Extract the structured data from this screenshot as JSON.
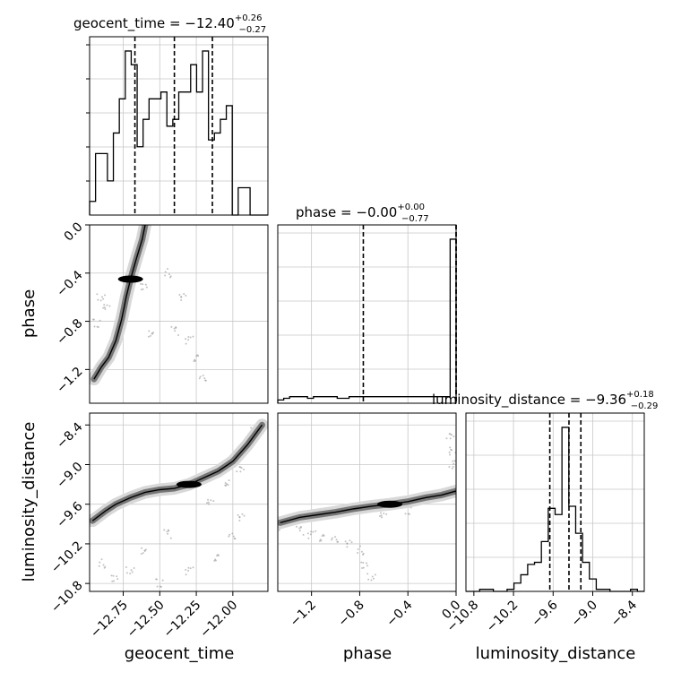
{
  "chart_data": {
    "type": "corner",
    "params": [
      "geocent_time",
      "phase",
      "luminosity_distance"
    ],
    "titles": {
      "geocent_time": {
        "name": "geocent_time",
        "median": "−12.40",
        "plus": "+0.26",
        "minus": "−0.27"
      },
      "phase": {
        "name": "phase",
        "median": "−0.00",
        "plus": "+0.00",
        "minus": "−0.77"
      },
      "luminosity_distance": {
        "name": "luminosity_distance",
        "median": "−9.36",
        "plus": "+0.18",
        "minus": "−0.29"
      }
    },
    "axis_labels": {
      "geocent_time": "geocent_time",
      "phase": "phase",
      "luminosity_distance": "luminosity_distance"
    },
    "ranges": {
      "geocent_time": [
        -12.98,
        -11.76
      ],
      "phase": [
        -1.48,
        0.0
      ],
      "luminosity_distance": [
        -10.92,
        -8.22
      ]
    },
    "ticks": {
      "geocent_time": {
        "values": [
          -12.75,
          -12.5,
          -12.25,
          -12.0
        ],
        "labels": [
          "−12.75",
          "−12.50",
          "−12.25",
          "−12.00"
        ]
      },
      "phase": {
        "values": [
          -1.2,
          -0.8,
          -0.4,
          0.0
        ],
        "labels": [
          "−1.2",
          "−0.8",
          "−0.4",
          "0.0"
        ]
      },
      "luminosity_distance": {
        "values": [
          -10.8,
          -10.2,
          -9.6,
          -9.0,
          -8.4
        ],
        "labels": [
          "−10.8",
          "−10.2",
          "−9.6",
          "−9.0",
          "−8.4"
        ]
      }
    },
    "quantiles": {
      "geocent_time": [
        -12.67,
        -12.4,
        -12.14
      ],
      "phase": [
        -0.77,
        0.0,
        0.0
      ],
      "luminosity_distance": [
        -9.65,
        -9.36,
        -9.18
      ]
    },
    "histograms": {
      "geocent_time": {
        "edges_range": [
          -12.98,
          -11.76
        ],
        "counts": [
          2,
          9,
          9,
          5,
          12,
          17,
          24,
          22,
          10,
          14,
          17,
          17,
          18,
          13,
          14,
          18,
          18,
          22,
          18,
          24,
          11,
          12,
          14,
          16,
          0,
          4,
          4,
          0,
          0,
          0
        ]
      },
      "phase": {
        "edges_range": [
          -1.48,
          0.0
        ],
        "counts": [
          2,
          3,
          4,
          4,
          4,
          3,
          4,
          4,
          4,
          4,
          3,
          3,
          4,
          4,
          4,
          4,
          4,
          4,
          4,
          4,
          4,
          4,
          4,
          4,
          4,
          4,
          4,
          4,
          4,
          100
        ]
      },
      "luminosity_distance": {
        "edges_range": [
          -10.92,
          -8.22
        ],
        "counts": [
          0,
          0,
          1,
          1,
          0,
          0,
          1,
          4,
          8,
          13,
          14,
          24,
          40,
          37,
          79,
          41,
          28,
          14,
          6,
          1,
          1,
          0,
          0,
          0,
          1,
          0
        ]
      }
    },
    "scatter_2d": {
      "phase_vs_geocent_time": {
        "ridge": [
          [
            -12.95,
            -1.28
          ],
          [
            -12.9,
            -1.18
          ],
          [
            -12.85,
            -1.1
          ],
          [
            -12.8,
            -0.96
          ],
          [
            -12.76,
            -0.78
          ],
          [
            -12.73,
            -0.6
          ],
          [
            -12.7,
            -0.45
          ],
          [
            -12.66,
            -0.28
          ],
          [
            -12.62,
            -0.12
          ],
          [
            -12.6,
            0.0
          ]
        ],
        "contour_points": [
          [
            -12.96,
            -1.26
          ],
          [
            -12.88,
            -1.16
          ],
          [
            -12.82,
            -1.05
          ],
          [
            -12.78,
            -0.9
          ],
          [
            -12.74,
            -0.72
          ],
          [
            -12.71,
            -0.55
          ],
          [
            -12.67,
            -0.38
          ],
          [
            -12.64,
            -0.2
          ],
          [
            -12.61,
            -0.05
          ],
          [
            -12.3,
            -0.02
          ],
          [
            -12.15,
            0.0
          ]
        ],
        "scatter_fill": [
          [
            -12.55,
            -0.9
          ],
          [
            -12.4,
            -0.88
          ],
          [
            -12.3,
            -0.95
          ],
          [
            -12.24,
            -1.1
          ],
          [
            -12.2,
            -1.28
          ],
          [
            -12.35,
            -0.6
          ],
          [
            -12.45,
            -0.4
          ],
          [
            -12.6,
            -0.5
          ],
          [
            -12.9,
            -0.6
          ],
          [
            -12.93,
            -0.82
          ],
          [
            -12.86,
            -0.7
          ]
        ]
      },
      "luminosity_distance_vs_geocent_time": {
        "ridge": [
          [
            -12.96,
            -9.85
          ],
          [
            -12.87,
            -9.7
          ],
          [
            -12.8,
            -9.6
          ],
          [
            -12.7,
            -9.5
          ],
          [
            -12.6,
            -9.42
          ],
          [
            -12.5,
            -9.38
          ],
          [
            -12.4,
            -9.36
          ],
          [
            -12.3,
            -9.3
          ],
          [
            -12.22,
            -9.22
          ],
          [
            -12.1,
            -9.1
          ],
          [
            -12.0,
            -8.95
          ],
          [
            -11.9,
            -8.7
          ],
          [
            -11.8,
            -8.4
          ]
        ],
        "scatter_fill": [
          [
            -12.6,
            -10.3
          ],
          [
            -12.45,
            -10.05
          ],
          [
            -12.3,
            -10.6
          ],
          [
            -12.1,
            -10.4
          ],
          [
            -12.0,
            -10.1
          ],
          [
            -11.95,
            -9.8
          ],
          [
            -12.9,
            -10.5
          ],
          [
            -12.8,
            -10.7
          ],
          [
            -12.7,
            -10.6
          ],
          [
            -12.5,
            -10.8
          ],
          [
            -12.15,
            -9.6
          ],
          [
            -11.95,
            -8.8
          ],
          [
            -11.85,
            -8.5
          ],
          [
            -11.95,
            -9.05
          ],
          [
            -12.05,
            -9.25
          ]
        ]
      },
      "luminosity_distance_vs_phase": {
        "ridge": [
          [
            -1.46,
            -9.88
          ],
          [
            -1.38,
            -9.84
          ],
          [
            -1.3,
            -9.8
          ],
          [
            -1.15,
            -9.76
          ],
          [
            -1.0,
            -9.72
          ],
          [
            -0.85,
            -9.67
          ],
          [
            -0.7,
            -9.63
          ],
          [
            -0.55,
            -9.6
          ],
          [
            -0.4,
            -9.56
          ],
          [
            -0.25,
            -9.5
          ],
          [
            -0.12,
            -9.46
          ],
          [
            0.0,
            -9.4
          ]
        ],
        "scatter_fill": [
          [
            -1.45,
            -9.95
          ],
          [
            -1.3,
            -10.0
          ],
          [
            -1.2,
            -10.05
          ],
          [
            -1.1,
            -10.1
          ],
          [
            -1.0,
            -10.15
          ],
          [
            -0.9,
            -10.2
          ],
          [
            -0.8,
            -10.3
          ],
          [
            -0.75,
            -10.5
          ],
          [
            -0.7,
            -10.7
          ],
          [
            -0.4,
            -9.7
          ],
          [
            -0.6,
            -9.8
          ],
          [
            -0.02,
            -9.0
          ],
          [
            -0.02,
            -8.8
          ],
          [
            -0.05,
            -8.55
          ]
        ]
      }
    },
    "grid": true
  }
}
